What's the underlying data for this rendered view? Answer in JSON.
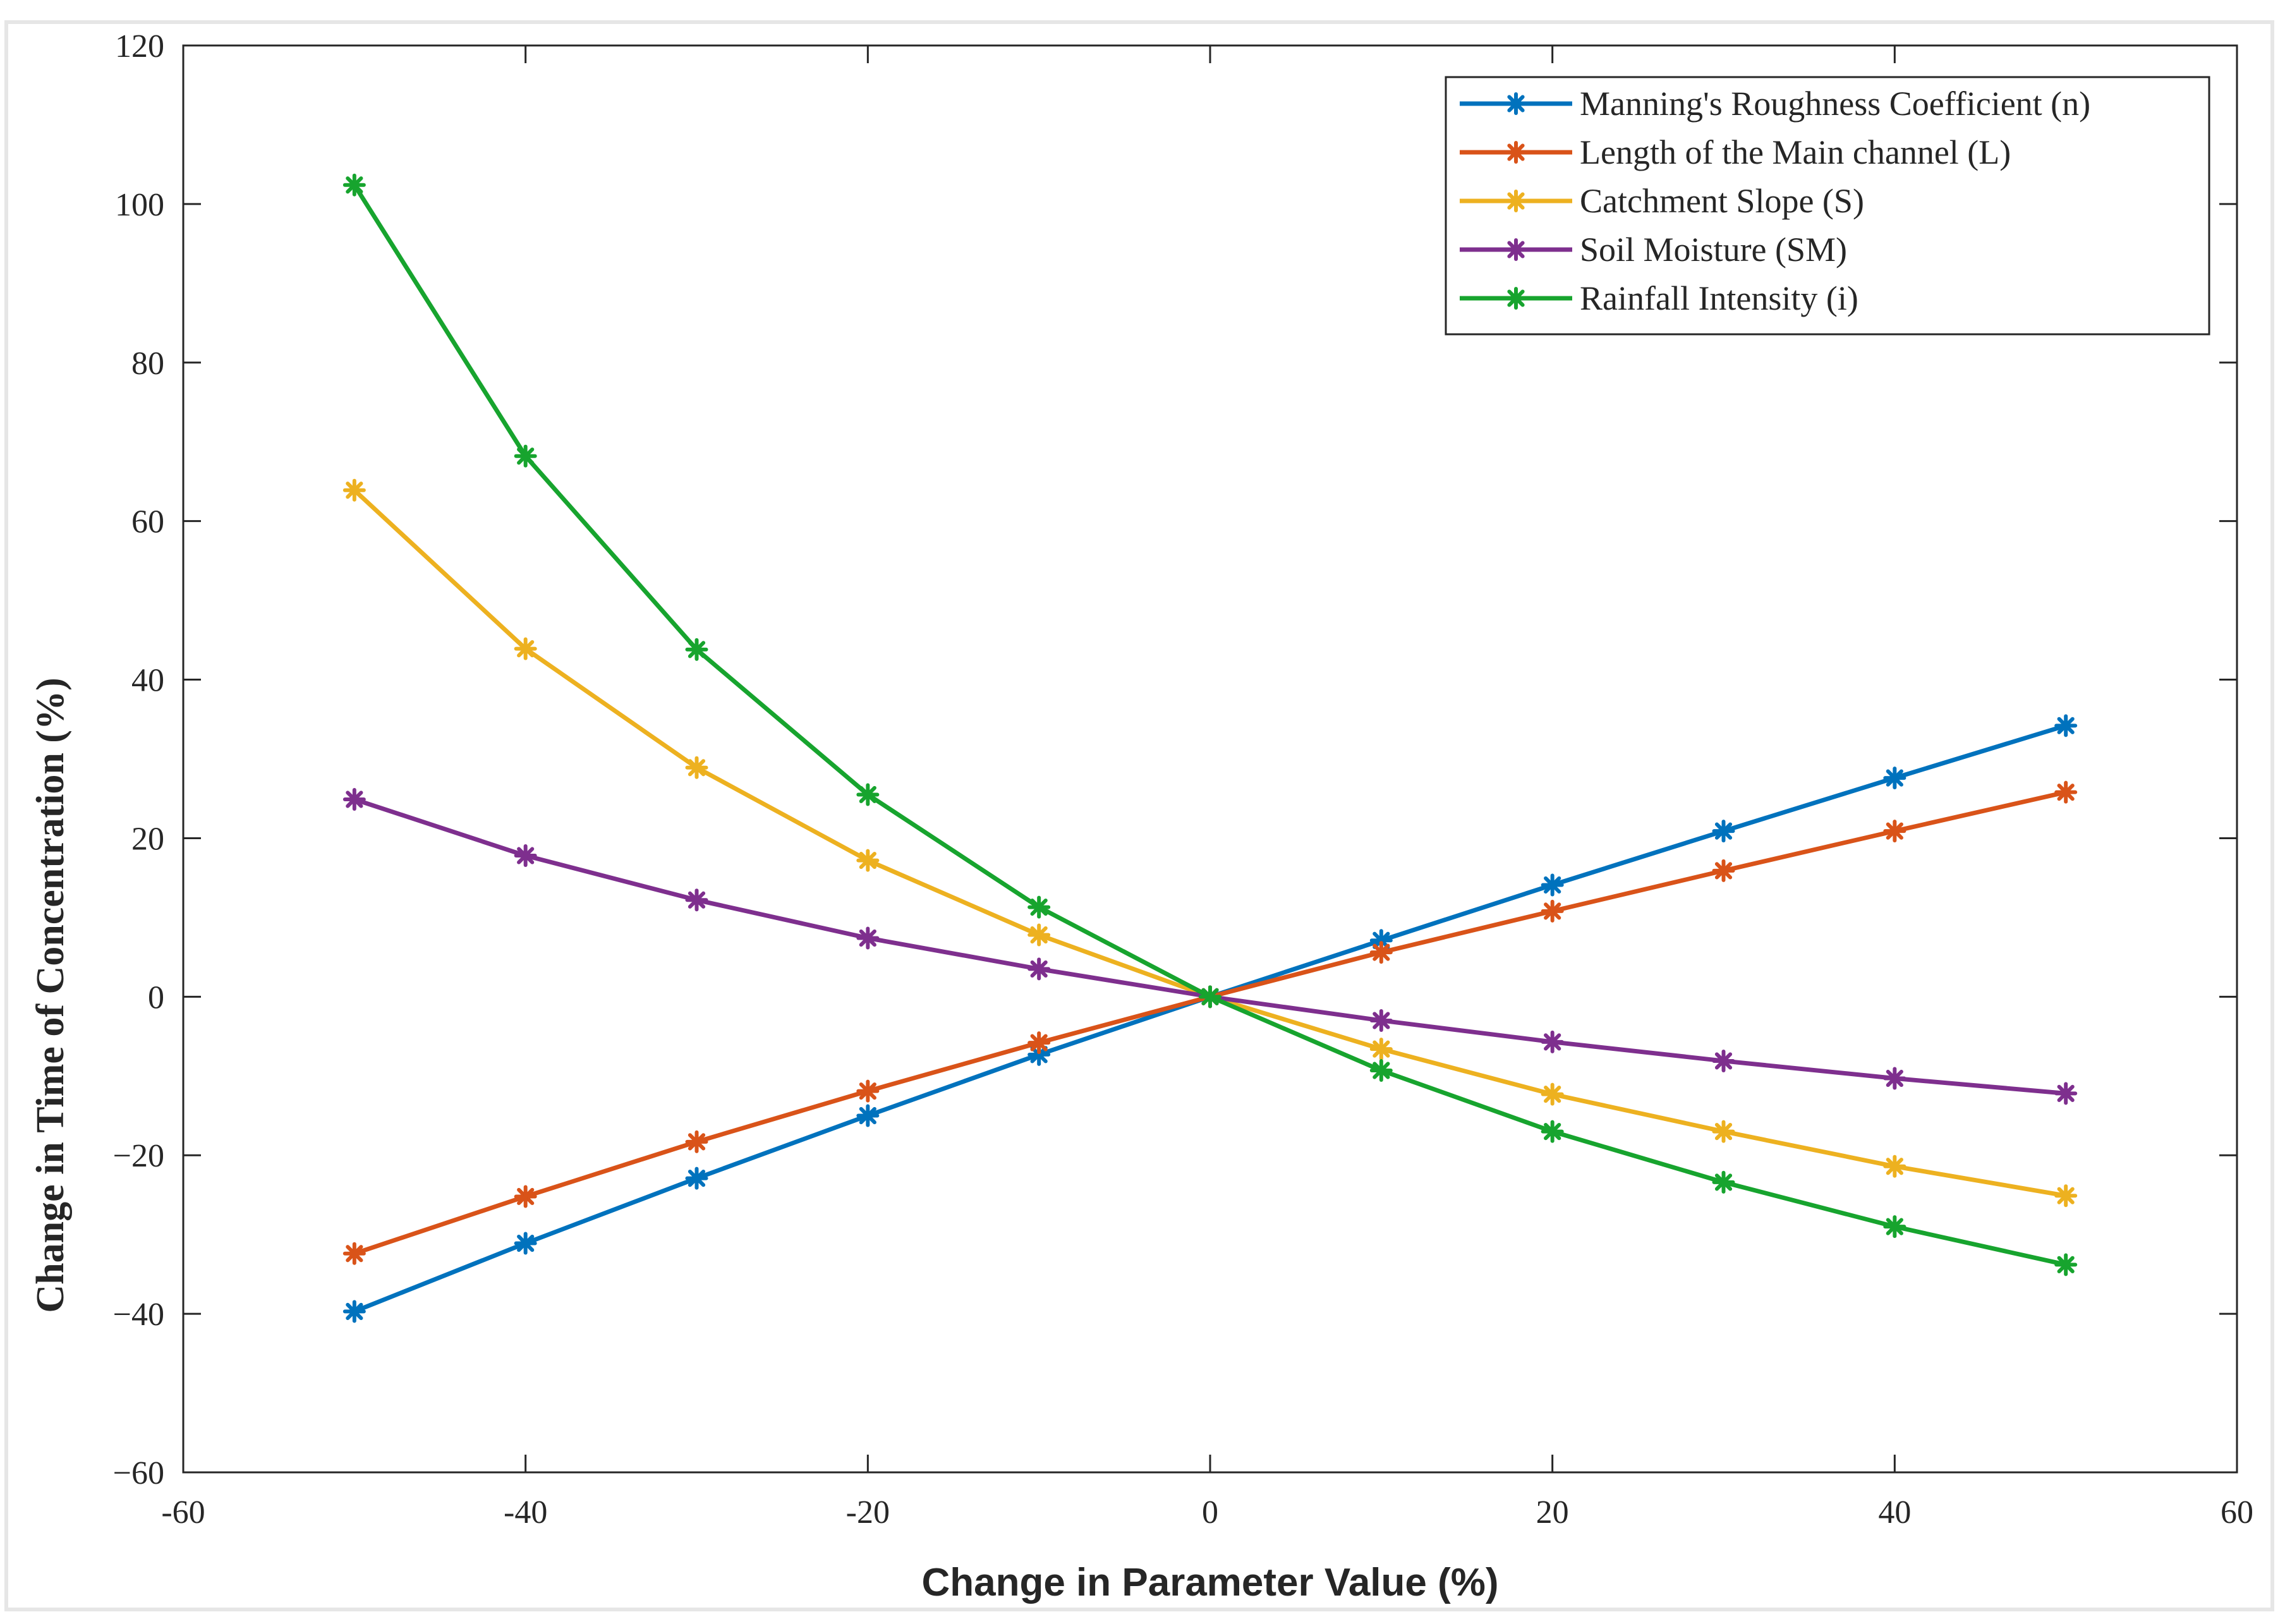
{
  "chart_data": {
    "type": "line",
    "title": "",
    "xlabel": "Change in Parameter Value (%)",
    "ylabel": "Change in Time of Concentration (%)",
    "xlim": [
      -60,
      60
    ],
    "ylim": [
      -60,
      120
    ],
    "xticks": [
      -60,
      -40,
      -20,
      0,
      20,
      40,
      60
    ],
    "xtick_labels": [
      "-60",
      "-40",
      "-20",
      "0",
      "20",
      "40",
      "60"
    ],
    "yticks": [
      -60,
      -40,
      -20,
      0,
      20,
      40,
      60,
      80,
      100,
      120
    ],
    "ytick_labels": [
      "−60",
      "−40",
      "−20",
      "0",
      "20",
      "40",
      "60",
      "80",
      "100",
      "120"
    ],
    "grid": false,
    "legend_position": "top-right",
    "marker": "asterisk",
    "x": [
      -50,
      -40,
      -30,
      -20,
      -10,
      0,
      10,
      20,
      30,
      40,
      50
    ],
    "series": [
      {
        "name": "Manning's Roughness Coefficient (n)",
        "color": "#0072BD",
        "values": [
          -39.7,
          -31.1,
          -22.9,
          -15.0,
          -7.3,
          0,
          7.1,
          14.1,
          20.9,
          27.6,
          34.2
        ]
      },
      {
        "name": "Length of the Main channel (L)",
        "color": "#D95319",
        "values": [
          -32.4,
          -25.2,
          -18.3,
          -11.9,
          -5.8,
          0,
          5.6,
          10.8,
          15.9,
          20.9,
          25.8
        ]
      },
      {
        "name": "Catchment Slope (S)",
        "color": "#EDB120",
        "values": [
          63.9,
          43.9,
          28.9,
          17.2,
          7.8,
          0,
          -6.6,
          -12.3,
          -17.0,
          -21.4,
          -25.1
        ]
      },
      {
        "name": "Soil Moisture (SM)",
        "color": "#7E2F8E",
        "values": [
          24.9,
          17.8,
          12.2,
          7.4,
          3.5,
          0,
          -3.0,
          -5.7,
          -8.1,
          -10.3,
          -12.2
        ]
      },
      {
        "name": "Rainfall Intensity (i)",
        "color": "#17A42E",
        "values": [
          102.4,
          68.2,
          43.8,
          25.5,
          11.3,
          0,
          -9.3,
          -17.0,
          -23.4,
          -29.0,
          -33.8
        ]
      }
    ]
  }
}
